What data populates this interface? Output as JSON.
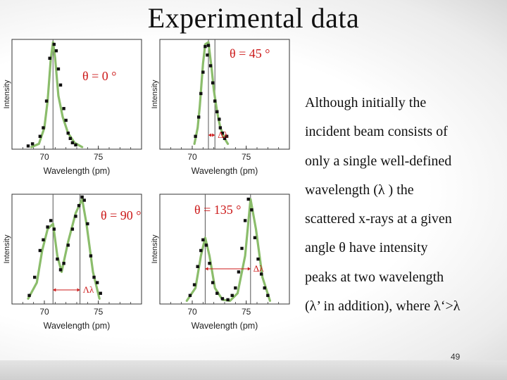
{
  "slide": {
    "title": "Experimental data",
    "page_number": "49",
    "body_lines": [
      "Although initially the",
      "incident beam consists of",
      "only a single well-defined",
      "wavelength (λ ) the",
      "scattered x-rays at a given",
      "angle θ  have intensity",
      "peaks at two wavelength",
      "(λ’ in addition), where λ‘>λ"
    ]
  },
  "colors": {
    "curve": "#8bbd6b",
    "points": "#111111",
    "angle_label": "#cc1a1a",
    "marker_line": "#555555"
  },
  "chart_data": [
    {
      "type": "scatter",
      "theta_label": "θ = 0 °",
      "delta_label": "",
      "xlabel": "Wavelength (pm)",
      "ylabel": "Intensity",
      "xlim": [
        67,
        79
      ],
      "ylim": [
        0,
        1
      ],
      "xticks": [
        70,
        75
      ],
      "xtick_labels": [
        "70",
        "75"
      ],
      "lambda0": 70.8,
      "lambda_prime": null,
      "curve_x": [
        68.8,
        69.5,
        70.0,
        70.3,
        70.6,
        70.8,
        71.0,
        71.3,
        71.7,
        72.2,
        72.8,
        73.5
      ],
      "curve_y": [
        0.02,
        0.05,
        0.2,
        0.45,
        0.85,
        1.0,
        0.85,
        0.5,
        0.3,
        0.15,
        0.06,
        0.02
      ],
      "points_x": [
        68.5,
        68.9,
        69.6,
        69.9,
        70.2,
        70.5,
        70.9,
        71.1,
        71.3,
        71.5,
        71.8,
        72.0,
        72.2,
        72.4,
        72.6,
        72.9
      ],
      "points_y": [
        0.03,
        0.05,
        0.12,
        0.2,
        0.45,
        0.85,
        0.98,
        0.92,
        0.75,
        0.6,
        0.38,
        0.27,
        0.15,
        0.1,
        0.06,
        0.04
      ]
    },
    {
      "type": "scatter",
      "theta_label": "θ = 45 °",
      "delta_label": "Δλ",
      "xlabel": "Wavelength (pm)",
      "ylabel": "Intensity",
      "xlim": [
        67,
        79
      ],
      "ylim": [
        0,
        1
      ],
      "xticks": [
        70,
        75
      ],
      "xtick_labels": [
        "70",
        "75"
      ],
      "lambda0": 71.5,
      "lambda_prime": 72.1,
      "curve_x": [
        70.2,
        70.5,
        70.7,
        71.0,
        71.2,
        71.5,
        71.8,
        72.0,
        72.3,
        72.6,
        73.0,
        73.3
      ],
      "curve_y": [
        0.05,
        0.2,
        0.4,
        0.8,
        0.98,
        1.0,
        0.75,
        0.55,
        0.35,
        0.2,
        0.1,
        0.05
      ],
      "points_x": [
        70.3,
        70.6,
        70.8,
        71.0,
        71.2,
        71.4,
        71.5,
        71.7,
        71.9,
        72.1,
        72.3,
        72.5,
        72.6,
        72.8,
        73.0,
        73.2
      ],
      "points_y": [
        0.12,
        0.3,
        0.52,
        0.72,
        0.96,
        0.88,
        0.97,
        0.78,
        0.62,
        0.45,
        0.35,
        0.28,
        0.2,
        0.15,
        0.1,
        0.12
      ]
    },
    {
      "type": "scatter",
      "theta_label": "θ = 90 °",
      "delta_label": "Λλ",
      "xlabel": "Wavelength (pm)",
      "ylabel": "Intensity",
      "xlim": [
        67,
        79
      ],
      "ylim": [
        0,
        1
      ],
      "xticks": [
        70,
        75
      ],
      "xtick_labels": [
        "70",
        "75"
      ],
      "lambda0": 70.8,
      "lambda_prime": 73.3,
      "curve_x": [
        68.5,
        69.3,
        69.8,
        70.3,
        70.8,
        71.2,
        71.6,
        72.2,
        72.9,
        73.5,
        73.9,
        74.5,
        75.1
      ],
      "curve_y": [
        0.05,
        0.2,
        0.5,
        0.7,
        0.75,
        0.45,
        0.3,
        0.58,
        0.85,
        0.98,
        0.75,
        0.3,
        0.05
      ],
      "points_x": [
        68.6,
        69.1,
        69.6,
        69.9,
        70.3,
        70.6,
        70.9,
        71.2,
        71.5,
        71.8,
        72.2,
        72.6,
        72.9,
        73.2,
        73.5,
        73.7,
        74.0,
        74.3,
        74.6,
        74.9,
        75.2
      ],
      "points_y": [
        0.08,
        0.25,
        0.5,
        0.6,
        0.72,
        0.78,
        0.7,
        0.42,
        0.32,
        0.38,
        0.55,
        0.7,
        0.82,
        0.92,
        1.0,
        0.97,
        0.75,
        0.45,
        0.25,
        0.2,
        0.1
      ]
    },
    {
      "type": "scatter",
      "theta_label": "θ = 135 °",
      "delta_label": "Δλ",
      "xlabel": "Wavelength (pm)",
      "ylabel": "Intensity",
      "xlim": [
        67,
        79
      ],
      "ylim": [
        0,
        1
      ],
      "xticks": [
        70,
        75
      ],
      "xtick_labels": [
        "70",
        "75"
      ],
      "lambda0": 71.2,
      "lambda_prime": 75.4,
      "curve_x": [
        69.5,
        70.3,
        70.8,
        71.2,
        71.6,
        72.1,
        72.8,
        73.5,
        74.2,
        74.9,
        75.4,
        75.9,
        76.5,
        77.2
      ],
      "curve_y": [
        0.03,
        0.15,
        0.45,
        0.62,
        0.45,
        0.15,
        0.04,
        0.03,
        0.1,
        0.45,
        0.98,
        0.7,
        0.25,
        0.03
      ],
      "points_x": [
        69.8,
        70.2,
        70.5,
        70.8,
        71.0,
        71.3,
        71.6,
        71.9,
        72.3,
        72.8,
        73.3,
        73.7,
        74.0,
        74.3,
        74.6,
        74.9,
        75.2,
        75.5,
        75.8,
        76.1,
        76.4,
        76.7,
        77.0
      ],
      "points_y": [
        0.08,
        0.18,
        0.35,
        0.5,
        0.6,
        0.55,
        0.38,
        0.2,
        0.1,
        0.05,
        0.04,
        0.08,
        0.15,
        0.3,
        0.52,
        0.78,
        0.98,
        0.88,
        0.62,
        0.42,
        0.28,
        0.15,
        0.08
      ]
    }
  ]
}
